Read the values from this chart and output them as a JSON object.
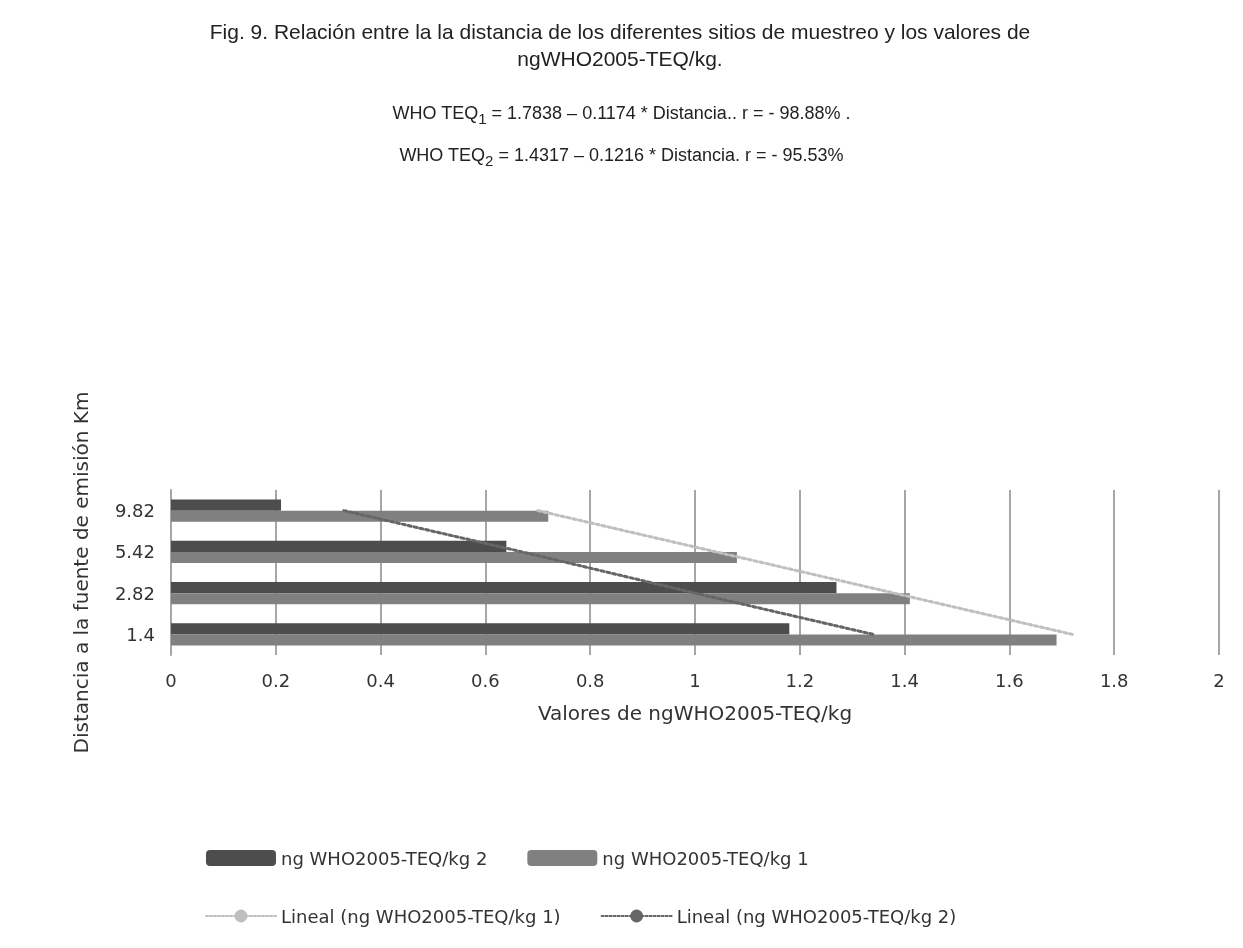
{
  "chart_data": {
    "type": "bar",
    "orientation": "horizontal",
    "title": "Fig. 9. Relación entre la la distancia de los diferentes sitios de muestreo y los valores de ngWHO2005-TEQ/kg.",
    "annotations": [
      "WHO TEQ$_{1}$ = 1.7838 – 0.1174 * Distancia..  r = - 98.88% .",
      "WHO TEQ$_{2}$ = 1.4317 – 0.1216 * Distancia. r = - 95.53%"
    ],
    "xlabel": "Valores de ngWHO2005-TEQ/kg",
    "ylabel": "Distancia a la fuente de emisión Km",
    "categories": [
      "9.82",
      "5.42",
      "2.82",
      "1.4"
    ],
    "series": [
      {
        "name": "ng WHO2005-TEQ/kg 2",
        "color": "#4d4d4d",
        "values": [
          0.21,
          0.64,
          1.27,
          1.18
        ]
      },
      {
        "name": "ng WHO2005-TEQ/kg 1",
        "color": "#808080",
        "values": [
          0.72,
          1.08,
          1.41,
          1.69
        ]
      },
      {
        "name": "Lineal (ng WHO2005-TEQ/kg 1)",
        "type": "line",
        "color": "#bfbfbf",
        "line_style": "dotted",
        "marker": "none",
        "values": [
          0.7,
          1.04,
          1.38,
          1.72
        ]
      },
      {
        "name": "Lineal (ng WHO2005-TEQ/kg 2)",
        "type": "line",
        "color": "#666666",
        "line_style": "dotted",
        "marker": "none",
        "values": [
          0.33,
          0.67,
          1.0,
          1.34
        ]
      }
    ],
    "xlim": [
      0,
      2
    ],
    "xticks": [
      0,
      0.2,
      0.4,
      0.6,
      0.8,
      1,
      1.2,
      1.4,
      1.6,
      1.8,
      2
    ],
    "grid": "x",
    "legend": "bottom"
  }
}
